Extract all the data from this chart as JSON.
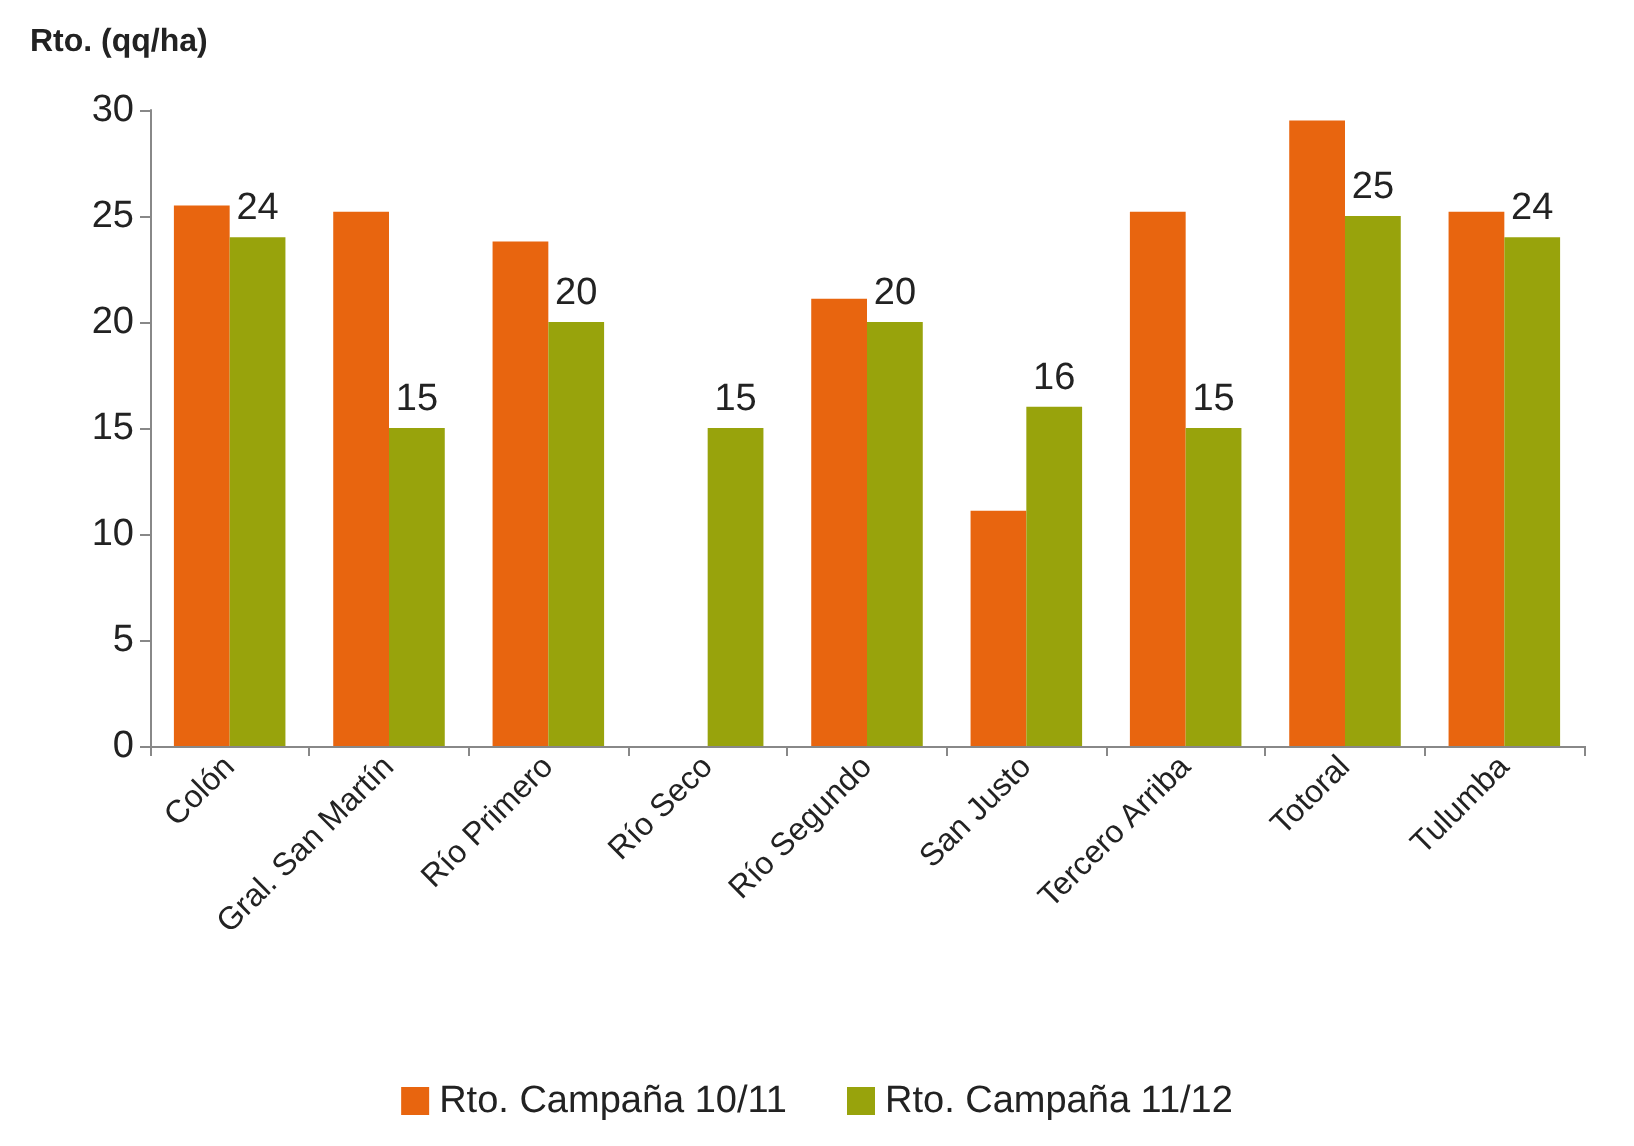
{
  "chart_data": {
    "type": "bar",
    "ylabel": "Rto. (qq/ha)",
    "categories": [
      "Colón",
      "Gral. San Martín",
      "Río Primero",
      "Río Seco",
      "Río Segundo",
      "San Justo",
      "Tercero Arriba",
      "Totoral",
      "Tulumba"
    ],
    "series": [
      {
        "name": "Rto. Campaña 10/11",
        "color": "#e8650f",
        "values": [
          25.5,
          25.2,
          23.8,
          null,
          21.1,
          11.1,
          25.2,
          29.5,
          25.2
        ]
      },
      {
        "name": "Rto. Campaña 11/12",
        "color": "#98a30c",
        "values": [
          24,
          15,
          20,
          15,
          20,
          16,
          15,
          25,
          24
        ],
        "value_labels": [
          "24",
          "15",
          "20",
          "15",
          "20",
          "16",
          "15",
          "25",
          "24"
        ]
      }
    ],
    "ylim": [
      0,
      30
    ],
    "yticks": [
      0,
      5,
      10,
      15,
      20,
      25,
      30
    ],
    "grid": false,
    "legend": "bottom"
  }
}
